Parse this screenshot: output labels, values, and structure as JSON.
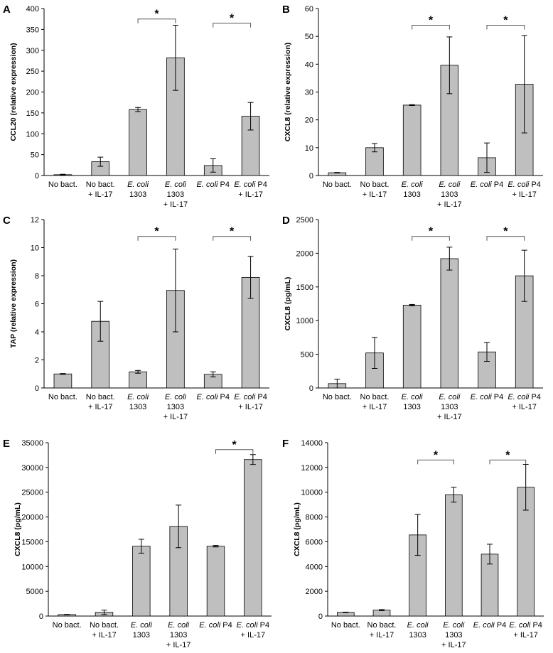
{
  "colors": {
    "bar_fill": "#bfbfbf",
    "bar_stroke": "#000000",
    "axis": "#000000"
  },
  "chart_data": [
    {
      "type": "bar",
      "panel": "A",
      "ylabel": "CCL20 (relative expression)",
      "ylim": [
        0,
        400
      ],
      "yticks": [
        0,
        50,
        100,
        150,
        200,
        250,
        300,
        350,
        400
      ],
      "categories": [
        [
          "No bact."
        ],
        [
          "No bact.",
          "+ IL-17"
        ],
        [
          "E. coli",
          "1303"
        ],
        [
          "E. coli",
          "1303",
          "+ IL-17"
        ],
        [
          "E. coli P4"
        ],
        [
          "E. coli P4",
          "+ IL-17"
        ]
      ],
      "values": [
        2,
        33,
        158,
        282,
        24,
        142
      ],
      "errors": [
        1,
        11,
        5,
        78,
        16,
        33
      ],
      "significance": [
        {
          "from": 2,
          "to": 3,
          "y": 375,
          "label": "*"
        },
        {
          "from": 4,
          "to": 5,
          "y": 365,
          "label": "*"
        }
      ]
    },
    {
      "type": "bar",
      "panel": "B",
      "ylabel": "CXCL8 (relative expression)",
      "ylim": [
        0,
        60
      ],
      "yticks": [
        0,
        10,
        20,
        30,
        40,
        50,
        60
      ],
      "categories": [
        [
          "No bact."
        ],
        [
          "No bact.",
          "+ IL-17"
        ],
        [
          "E. coli",
          "1303"
        ],
        [
          "E. coli",
          "1303",
          "+ IL-17"
        ],
        [
          "E. coli P4"
        ],
        [
          "E. coli P4",
          "+ IL-17"
        ]
      ],
      "values": [
        1,
        10,
        25.3,
        39.6,
        6.4,
        32.8
      ],
      "errors": [
        0.1,
        1.5,
        0.15,
        10.2,
        5.3,
        17.5
      ],
      "significance": [
        {
          "from": 2,
          "to": 3,
          "y": 54,
          "label": "*"
        },
        {
          "from": 4,
          "to": 5,
          "y": 54,
          "label": "*"
        }
      ]
    },
    {
      "type": "bar",
      "panel": "C",
      "ylabel": "TAP (relative expression)",
      "ylim": [
        0,
        12
      ],
      "yticks": [
        0,
        2,
        4,
        6,
        8,
        10,
        12
      ],
      "categories": [
        [
          "No bact."
        ],
        [
          "No bact.",
          "+ IL-17"
        ],
        [
          "E. coli",
          "1303"
        ],
        [
          "E. coli",
          "1303",
          "+ IL-17"
        ],
        [
          "E. coli P4"
        ],
        [
          "E. coli P4",
          "+ IL-17"
        ]
      ],
      "values": [
        1,
        4.75,
        1.15,
        6.95,
        0.97,
        7.88
      ],
      "errors": [
        0.03,
        1.42,
        0.1,
        2.95,
        0.18,
        1.5
      ],
      "significance": [
        {
          "from": 2,
          "to": 3,
          "y": 10.8,
          "label": "*"
        },
        {
          "from": 4,
          "to": 5,
          "y": 10.8,
          "label": "*"
        }
      ]
    },
    {
      "type": "bar",
      "panel": "D",
      "ylabel": "CXCL8 (pg/mL)",
      "ylim": [
        0,
        2500
      ],
      "yticks": [
        0,
        500,
        1000,
        1500,
        2000,
        2500
      ],
      "categories": [
        [
          "No bact."
        ],
        [
          "No bact.",
          "+ IL-17"
        ],
        [
          "E. coli",
          "1303"
        ],
        [
          "E. coli",
          "1303",
          "+ IL-17"
        ],
        [
          "E. coli P4"
        ],
        [
          "E. coli P4",
          "+ IL-17"
        ]
      ],
      "values": [
        65,
        520,
        1230,
        1920,
        535,
        1665
      ],
      "errors": [
        65,
        230,
        10,
        170,
        140,
        380
      ],
      "significance": [
        {
          "from": 2,
          "to": 3,
          "y": 2250,
          "label": "*"
        },
        {
          "from": 4,
          "to": 5,
          "y": 2250,
          "label": "*"
        }
      ]
    },
    {
      "type": "bar",
      "panel": "E",
      "ylabel": "CXCL8 (pg/mL)",
      "ylim": [
        0,
        35000
      ],
      "yticks": [
        0,
        5000,
        10000,
        15000,
        20000,
        25000,
        30000,
        35000
      ],
      "categories": [
        [
          "No bact."
        ],
        [
          "No bact.",
          "+ IL-17"
        ],
        [
          "E. coli",
          "1303"
        ],
        [
          "E. coli",
          "1303",
          "+ IL-17"
        ],
        [
          "E. coli P4"
        ],
        [
          "E. coli P4",
          "+ IL-17"
        ]
      ],
      "values": [
        300,
        750,
        14100,
        18100,
        14100,
        31600
      ],
      "errors": [
        40,
        450,
        1400,
        4300,
        150,
        1000
      ],
      "significance": [
        {
          "from": 4,
          "to": 5,
          "y": 33600,
          "label": "*"
        }
      ]
    },
    {
      "type": "bar",
      "panel": "F",
      "ylabel": "CXCL8 (pg/mL)",
      "ylim": [
        0,
        14000
      ],
      "yticks": [
        0,
        2000,
        4000,
        6000,
        8000,
        10000,
        12000,
        14000
      ],
      "categories": [
        [
          "No bact."
        ],
        [
          "No bact.",
          "+ IL-17"
        ],
        [
          "E. coli",
          "1303"
        ],
        [
          "E. coli",
          "1303",
          "+ IL-17"
        ],
        [
          "E. coli P4"
        ],
        [
          "E. coli P4",
          "+ IL-17"
        ]
      ],
      "values": [
        300,
        480,
        6550,
        9800,
        5000,
        10400
      ],
      "errors": [
        20,
        40,
        1650,
        600,
        800,
        1850
      ],
      "significance": [
        {
          "from": 2,
          "to": 3,
          "y": 12600,
          "label": "*"
        },
        {
          "from": 4,
          "to": 5,
          "y": 12600,
          "label": "*"
        }
      ]
    }
  ]
}
